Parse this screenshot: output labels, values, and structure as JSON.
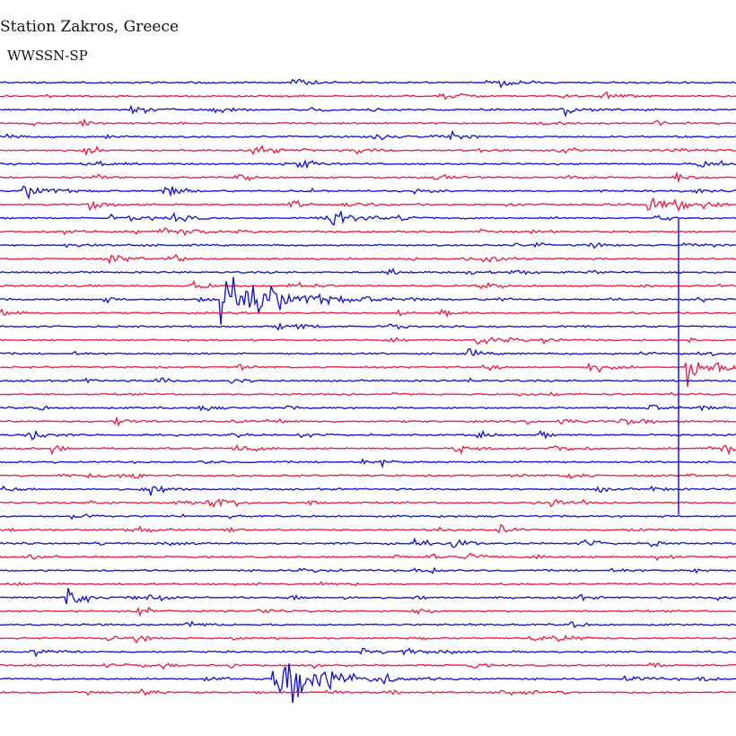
{
  "header": {
    "title": "Station Zakros, Greece",
    "network": "WWSSN-SP"
  },
  "colors": {
    "blue": "#1a1acc",
    "red": "#e8244a"
  },
  "chart_data": {
    "type": "line",
    "title": "Station Zakros, Greece",
    "subtitle": "WWSSN-SP",
    "xlabel": "",
    "ylabel": "",
    "grid": false,
    "legend": "none",
    "trace_count": 46,
    "trace_colors_alternating": [
      "blue",
      "red"
    ],
    "x_range": [
      0,
      1
    ],
    "event_unit": "fraction of trace length",
    "events": [
      {
        "trace": 8,
        "x": 0.03,
        "amplitude": 10,
        "duration": 0.04
      },
      {
        "trace": 10,
        "x": 0.45,
        "amplitude": 14,
        "duration": 0.04
      },
      {
        "trace": 9,
        "x": 0.88,
        "amplitude": 8,
        "duration": 0.04
      },
      {
        "trace": 16,
        "x": 0.3,
        "amplitude": 40,
        "duration": 0.1
      },
      {
        "trace": 21,
        "x": 0.93,
        "amplitude": 18,
        "duration": 0.06
      },
      {
        "trace": 27,
        "x": 0.07,
        "amplitude": 6,
        "duration": 0.02
      },
      {
        "trace": 38,
        "x": 0.09,
        "amplitude": 14,
        "duration": 0.03
      },
      {
        "trace": 44,
        "x": 0.37,
        "amplitude": 48,
        "duration": 0.08
      }
    ]
  }
}
